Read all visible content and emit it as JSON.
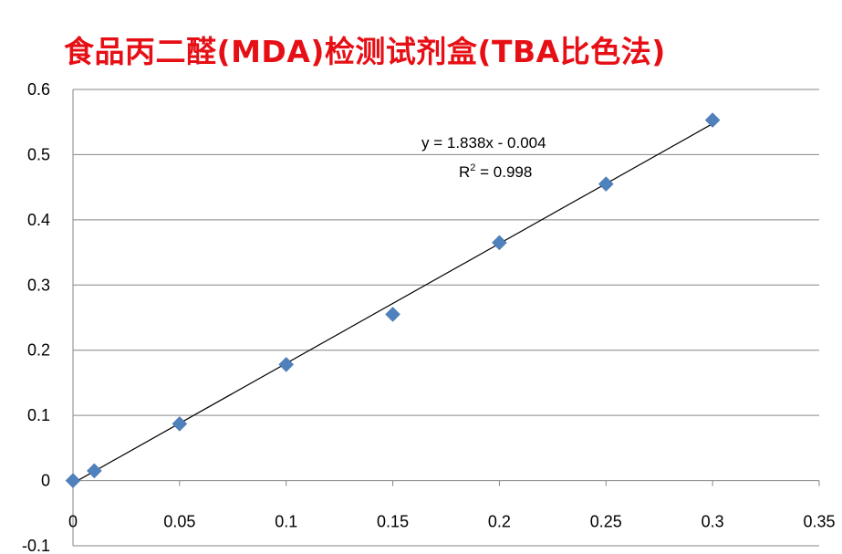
{
  "chart_data": {
    "type": "scatter",
    "title": "食品丙二醛(MDA)检测试剂盒(TBA比色法)",
    "xlabel": "",
    "ylabel": "",
    "xlim": [
      0,
      0.35
    ],
    "ylim": [
      -0.1,
      0.6
    ],
    "grid": "horizontal",
    "x_ticks": [
      "0",
      "0.05",
      "0.1",
      "0.15",
      "0.2",
      "0.25",
      "0.3",
      "0.35"
    ],
    "y_ticks": [
      "-0.1",
      "0",
      "0.1",
      "0.2",
      "0.3",
      "0.4",
      "0.5",
      "0.6"
    ],
    "series": [
      {
        "x": [
          0,
          0.01,
          0.05,
          0.1,
          0.15,
          0.2,
          0.25,
          0.3
        ],
        "y": [
          0,
          0.015,
          0.087,
          0.178,
          0.255,
          0.365,
          0.455,
          0.553
        ]
      }
    ],
    "trendline": {
      "slope": 1.838,
      "intercept": -0.004,
      "equation": "y = 1.838x - 0.004",
      "r2_label": "R",
      "r2_exponent": "2",
      "r2_value": " = 0.998"
    },
    "colors": {
      "marker": "#4f81bd",
      "title": "#e60f15",
      "trendline": "#000000",
      "grid": "#868686"
    }
  }
}
